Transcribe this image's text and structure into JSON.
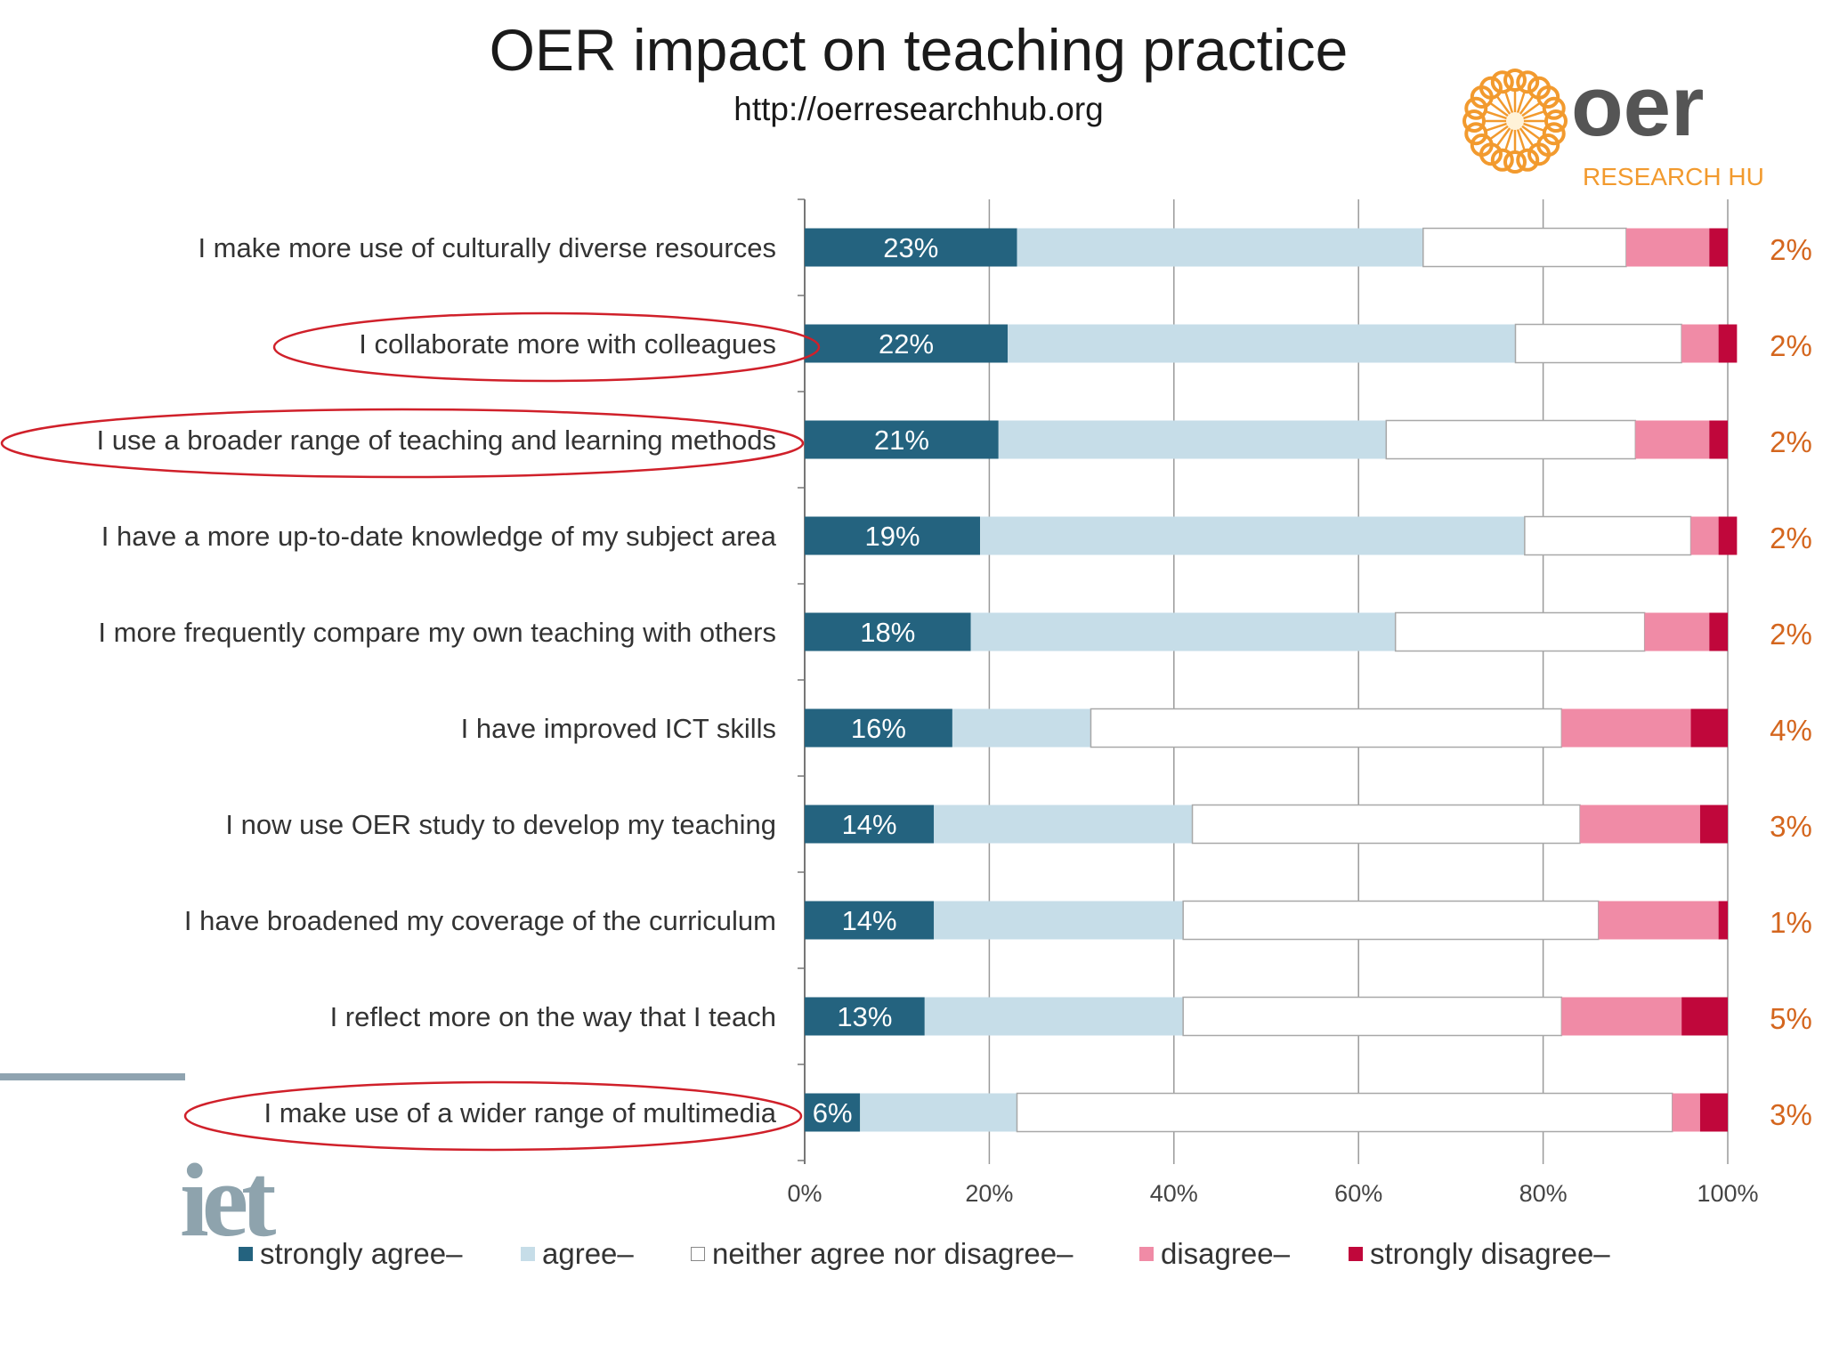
{
  "header": {
    "title": "OER impact on teaching practice",
    "subtitle": "http://oerresearchhub.org"
  },
  "logos": {
    "oer": {
      "word": "oer",
      "tagline": "RESEARCH HUB"
    },
    "iet": {
      "word": "iet"
    }
  },
  "colors": {
    "strongly_agree": "#24637f",
    "agree": "#c6dde8",
    "neither": "#ffffff",
    "disagree": "#f08ba6",
    "strongly_disagree": "#c0073b",
    "right_label": "#d4661e",
    "annotation_ellipse": "#d0202a",
    "logo_orange": "#f29a2e",
    "logo_text": "#555555"
  },
  "chart_data": {
    "type": "bar",
    "orientation": "horizontal",
    "stacked": true,
    "xlim": [
      0,
      100
    ],
    "x_ticks": [
      "0%",
      "20%",
      "40%",
      "60%",
      "80%",
      "100%"
    ],
    "grid": true,
    "legend_position": "bottom",
    "categories": [
      "I make more use of culturally diverse resources",
      "I collaborate more with colleagues",
      "I use a broader range of teaching and learning methods",
      "I have a more up-to-date knowledge of my subject area",
      "I more frequently compare my own teaching with others",
      "I have improved ICT skills",
      "I now use OER study to develop my teaching",
      "I have broadened my coverage of the curriculum",
      "I reflect more on the way that I teach",
      "I make use of a wider range of multimedia"
    ],
    "highlighted_categories": [
      "I collaborate more with colleagues",
      "I use a broader range of teaching and learning methods",
      "I make use of a wider range of multimedia"
    ],
    "series": [
      {
        "name": "strongly agree–",
        "values": [
          23,
          22,
          21,
          19,
          18,
          16,
          14,
          14,
          13,
          6
        ]
      },
      {
        "name": "agree–",
        "values": [
          44,
          55,
          42,
          59,
          46,
          15,
          28,
          27,
          28,
          17
        ]
      },
      {
        "name": "neither agree nor disagree–",
        "values": [
          22,
          18,
          27,
          18,
          27,
          51,
          42,
          45,
          41,
          71
        ]
      },
      {
        "name": "disagree–",
        "values": [
          9,
          4,
          8,
          3,
          7,
          14,
          13,
          13,
          13,
          3
        ]
      },
      {
        "name": "strongly disagree–",
        "values": [
          2,
          2,
          2,
          2,
          2,
          4,
          3,
          1,
          5,
          3
        ]
      }
    ],
    "bar_labels": [
      "23%",
      "22%",
      "21%",
      "19%",
      "18%",
      "16%",
      "14%",
      "14%",
      "13%",
      "6%"
    ],
    "right_labels": [
      "2%",
      "2%",
      "2%",
      "2%",
      "2%",
      "4%",
      "3%",
      "1%",
      "5%",
      "3%"
    ]
  }
}
